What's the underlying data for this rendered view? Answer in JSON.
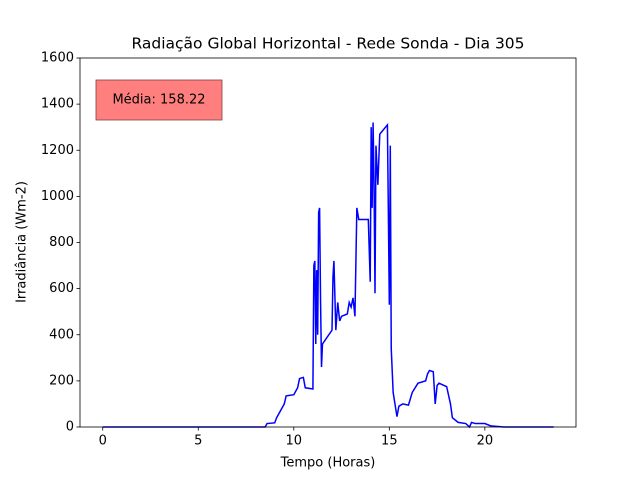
{
  "chart_data": {
    "type": "line",
    "title": "Radiação Global Horizontal - Rede Sonda - Dia 305",
    "xlabel": "Tempo (Horas)",
    "ylabel": "Irradiância (Wm-2)",
    "annotation": "Média: 158.22",
    "annotation_color": "#ff7f7f",
    "xlim": [
      -1.19,
      24.77
    ],
    "ylim": [
      0,
      1600
    ],
    "xticks": [
      0,
      5,
      10,
      15,
      20
    ],
    "yticks": [
      0,
      200,
      400,
      600,
      800,
      1000,
      1200,
      1400,
      1600
    ],
    "series": [
      {
        "color": "#0000ff",
        "x": [
          0,
          8.5,
          8.6,
          9.0,
          9.1,
          9.3,
          9.5,
          9.6,
          10.0,
          10.2,
          10.3,
          10.5,
          10.6,
          11.0,
          11.05,
          11.1,
          11.15,
          11.2,
          11.25,
          11.3,
          11.35,
          11.4,
          11.45,
          11.5,
          12.0,
          12.05,
          12.1,
          12.2,
          12.3,
          12.4,
          12.5,
          12.8,
          12.9,
          13.0,
          13.1,
          13.2,
          13.3,
          13.4,
          13.9,
          14.0,
          14.05,
          14.1,
          14.15,
          14.2,
          14.25,
          14.3,
          14.4,
          14.5,
          14.8,
          14.9,
          15.0,
          15.05,
          15.1,
          15.2,
          15.4,
          15.5,
          15.7,
          16.0,
          16.2,
          16.5,
          16.9,
          17.0,
          17.1,
          17.3,
          17.4,
          17.5,
          17.6,
          18.0,
          18.2,
          18.3,
          18.6,
          19.0,
          19.2,
          19.3,
          19.5,
          20.0,
          20.3,
          21.0,
          23.6
        ],
        "values": [
          0,
          0,
          15,
          18,
          40,
          70,
          100,
          135,
          140,
          170,
          210,
          215,
          170,
          165,
          700,
          720,
          360,
          680,
          400,
          930,
          950,
          550,
          260,
          360,
          420,
          650,
          720,
          420,
          540,
          460,
          480,
          490,
          540,
          520,
          560,
          480,
          950,
          900,
          900,
          630,
          1300,
          950,
          1320,
          1050,
          580,
          1220,
          1050,
          1270,
          1300,
          1310,
          530,
          1220,
          340,
          150,
          45,
          90,
          100,
          95,
          150,
          190,
          200,
          230,
          245,
          240,
          100,
          180,
          190,
          175,
          100,
          40,
          20,
          15,
          0,
          20,
          15,
          15,
          5,
          0,
          0
        ]
      }
    ]
  }
}
